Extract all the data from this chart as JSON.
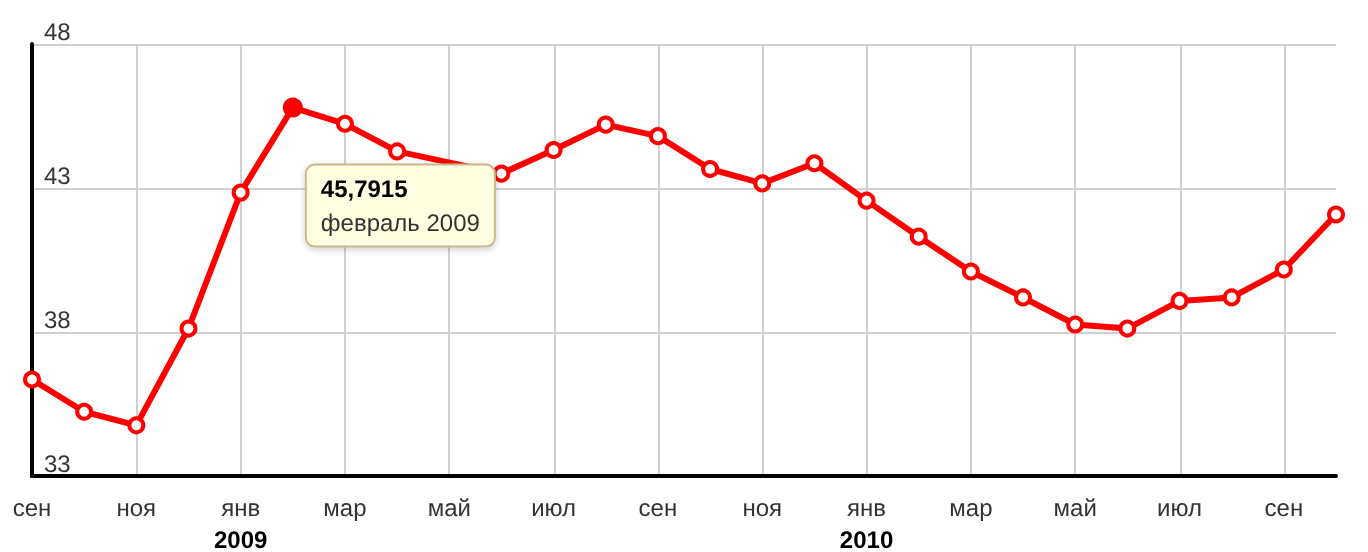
{
  "chart_data": {
    "type": "line",
    "categories": [
      "сен",
      null,
      "ноя",
      null,
      "янв\n2009",
      null,
      "мар",
      null,
      "май",
      null,
      "июл",
      null,
      "сен",
      null,
      "ноя",
      null,
      "янв\n2010",
      null,
      "мар",
      null,
      "май",
      null,
      "июл",
      null,
      "сен",
      null
    ],
    "series": [
      {
        "color": "#ff0000",
        "values": [
          36.35,
          35.23,
          34.76,
          38.12,
          42.84,
          45.7915,
          45.23,
          44.27,
          null,
          43.5,
          44.32,
          45.2,
          44.8,
          43.66,
          43.16,
          43.86,
          42.56,
          41.31,
          40.1,
          39.2,
          38.26,
          38.12,
          39.08,
          39.2,
          40.17,
          42.08
        ]
      }
    ],
    "ylim": [
      33,
      48
    ],
    "yticks": [
      33,
      38,
      43,
      48
    ],
    "grid": true,
    "marker": "circle",
    "line_style": "solid",
    "annotations": [
      "45,7915\nфевраль 2009"
    ]
  }
}
